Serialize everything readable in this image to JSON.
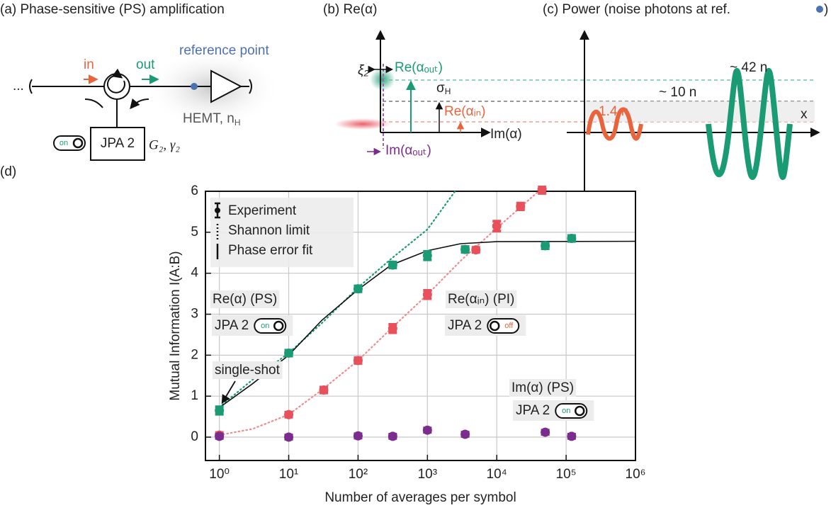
{
  "panel_a": {
    "title": "(a) Phase-sensitive (PS) amplification",
    "dots": "...",
    "in": "in",
    "out": "out",
    "reference": "reference point",
    "hemt": "HEMT, n",
    "hemt_sub": "H",
    "jpa": "JPA 2",
    "toggle": "on",
    "params": "G₂, γ₂"
  },
  "panel_b": {
    "title": "(b) Re(α)",
    "xi": "ξ₂",
    "re_out": "Re(αₒᵤₜ)",
    "sigma": "σ",
    "sigma_sub": "H",
    "re_in": "Re(αᵢₙ)",
    "im": "Im(α)",
    "im_out": "Im(αₒᵤₜ)"
  },
  "panel_c": {
    "title": "(c) Power (noise photons at ref.",
    "title_end": ")",
    "big": "~ 42 n",
    "mid": "~ 10 n",
    "small": "1.4 n",
    "x": "x"
  },
  "panel_d": {
    "title": "(d)"
  },
  "chart_data": {
    "type": "scatter",
    "xlabel": "Number of averages per symbol",
    "ylabel": "Mutual Information I(A:B)",
    "xscale": "log",
    "xlim": [
      0.63,
      1000000
    ],
    "ylim": [
      -0.57,
      6
    ],
    "xticks": [
      {
        "value": 1,
        "label": "10⁰"
      },
      {
        "value": 10,
        "label": "10¹"
      },
      {
        "value": 100,
        "label": "10²"
      },
      {
        "value": 1000,
        "label": "10³"
      },
      {
        "value": 10000,
        "label": "10⁴"
      },
      {
        "value": 100000,
        "label": "10⁵"
      },
      {
        "value": 1000000,
        "label": "10⁶"
      }
    ],
    "yticks": [
      0,
      1,
      2,
      3,
      4,
      5,
      6
    ],
    "grid": true,
    "legend": [
      "Experiment",
      "Shannon limit",
      "Phase error fit"
    ],
    "series": [
      {
        "name": "Re(α) (PS)",
        "color": "#1b9b74",
        "x": [
          1,
          10,
          100,
          316,
          1000,
          3500,
          50000,
          120000
        ],
        "values": [
          0.65,
          2.05,
          3.62,
          4.2,
          4.43,
          4.58,
          4.67,
          4.85
        ],
        "errors": [
          0.09,
          0.07,
          0.07,
          0.07,
          0.1,
          0.07,
          0.07,
          0.07
        ]
      },
      {
        "name": "Re(αᵢₙ) (PI)",
        "color": "#e8505b",
        "x": [
          1,
          10,
          32,
          100,
          316,
          1000,
          5000,
          10000,
          22000,
          45000
        ],
        "values": [
          0.05,
          0.55,
          1.15,
          1.87,
          2.65,
          3.48,
          4.57,
          5.15,
          5.63,
          6.05
        ],
        "errors": [
          0.06,
          0.06,
          0.07,
          0.07,
          0.1,
          0.1,
          0.06,
          0.12,
          0.08,
          0.1
        ]
      },
      {
        "name": "Im(α) (PS)",
        "color": "#7b2d8e",
        "x": [
          1,
          10,
          100,
          316,
          1000,
          3500,
          50000,
          120000
        ],
        "values": [
          0.02,
          0.0,
          0.03,
          0.02,
          0.17,
          0.07,
          0.12,
          0.02
        ],
        "errors": [
          0.05,
          0.05,
          0.05,
          0.05,
          0.05,
          0.05,
          0.05,
          0.05
        ]
      }
    ],
    "fits": [
      {
        "style": "dotted",
        "color": "#1b9b74",
        "x": [
          1,
          3,
          10,
          30,
          100,
          300,
          1000,
          2500
        ],
        "values": [
          0.73,
          1.4,
          2.05,
          2.78,
          3.65,
          4.35,
          5.07,
          6.0
        ]
      },
      {
        "style": "dotted",
        "color": "#f08a90",
        "x": [
          1,
          3,
          10,
          30,
          100,
          300,
          1000,
          3000,
          10000,
          40000
        ],
        "values": [
          0.05,
          0.2,
          0.55,
          1.15,
          1.87,
          2.65,
          3.48,
          4.3,
          5.1,
          6.0
        ]
      },
      {
        "style": "solid",
        "color": "#111111",
        "x": [
          1,
          3,
          10,
          30,
          100,
          300,
          1000,
          3000,
          10000,
          1000000
        ],
        "values": [
          0.72,
          1.3,
          2.0,
          2.85,
          3.6,
          4.2,
          4.55,
          4.72,
          4.77,
          4.78
        ]
      }
    ],
    "jpa_labels": [
      "JPA 2",
      "JPA 2",
      "JPA 2"
    ],
    "toggles": [
      "on",
      "off",
      "on"
    ],
    "annotation": "single-shot"
  }
}
